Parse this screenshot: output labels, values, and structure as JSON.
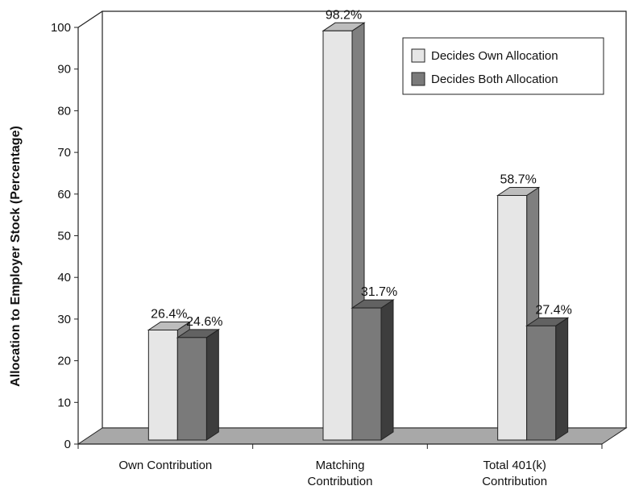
{
  "chart_data": {
    "type": "bar",
    "title": "",
    "xlabel": "",
    "ylabel": "Allocation to Employer Stock (Percentage)",
    "ylim": [
      0,
      100
    ],
    "yticks": [
      0,
      10,
      20,
      30,
      40,
      50,
      60,
      70,
      80,
      90,
      100
    ],
    "categories": [
      [
        "Own Contribution"
      ],
      [
        "Matching",
        "Contribution"
      ],
      [
        "Total 401(k)",
        "Contribution"
      ]
    ],
    "series": [
      {
        "name": "Decides Own Allocation",
        "values": [
          26.4,
          98.2,
          58.7
        ],
        "labels": [
          "26.4%",
          "98.2%",
          "58.7%"
        ],
        "color": "#e6e6e6"
      },
      {
        "name": "Decides Both Allocation",
        "values": [
          24.6,
          31.7,
          27.4
        ],
        "labels": [
          "24.6%",
          "31.7%",
          "27.4%"
        ],
        "color": "#7a7a7a"
      }
    ],
    "legend_position": "top-right",
    "style": "3d",
    "grid": false
  }
}
